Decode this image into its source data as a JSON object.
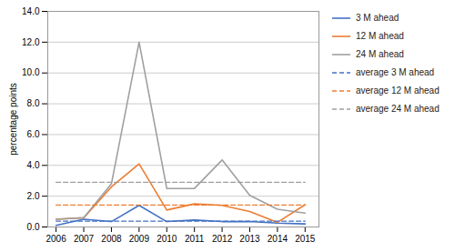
{
  "chart_data": {
    "type": "line",
    "y_label": "percentage points",
    "x": [
      2006,
      2007,
      2008,
      2009,
      2010,
      2011,
      2012,
      2013,
      2014,
      2015
    ],
    "xlim": [
      2005.7,
      2015.5
    ],
    "xticks": [
      2006,
      2007,
      2008,
      2009,
      2010,
      2011,
      2012,
      2013,
      2014,
      2015
    ],
    "ylim": [
      0.0,
      14.0
    ],
    "yticks": [
      {
        "value": 0.0,
        "label": "0.0"
      },
      {
        "value": 2.0,
        "label": "2.0"
      },
      {
        "value": 4.0,
        "label": "4.0"
      },
      {
        "value": 6.0,
        "label": "6.0"
      },
      {
        "value": 8.0,
        "label": "8.0"
      },
      {
        "value": 10.0,
        "label": "10.0"
      },
      {
        "value": 12.0,
        "label": "12.0"
      },
      {
        "value": 14.0,
        "label": "14.0"
      }
    ],
    "grid": true,
    "legend": "right",
    "series": [
      {
        "name": "3 M ahead",
        "color": "#4472C4",
        "line_style": "solid",
        "values": [
          0.1,
          0.5,
          0.35,
          1.4,
          0.35,
          0.45,
          0.35,
          0.35,
          0.25,
          0.2
        ]
      },
      {
        "name": "12 M ahead",
        "color": "#ED7D31",
        "line_style": "solid",
        "values": [
          0.5,
          0.6,
          2.6,
          4.1,
          1.1,
          1.5,
          1.4,
          1.0,
          0.3,
          1.45
        ]
      },
      {
        "name": "24 M ahead",
        "color": "#A0A0A0",
        "line_style": "solid",
        "values": [
          0.5,
          0.6,
          2.8,
          12.0,
          2.5,
          2.5,
          4.35,
          2.05,
          1.15,
          0.9
        ]
      },
      {
        "name": "average 3 M ahead",
        "color": "#4472C4",
        "line_style": "dashed",
        "x": [
          2006,
          2015
        ],
        "values": [
          0.38,
          0.38
        ]
      },
      {
        "name": "average 12 M ahead",
        "color": "#ED7D31",
        "line_style": "dashed",
        "x": [
          2006,
          2015
        ],
        "values": [
          1.42,
          1.42
        ]
      },
      {
        "name": "average 24 M ahead",
        "color": "#A0A0A0",
        "line_style": "dashed",
        "x": [
          2006,
          2015
        ],
        "values": [
          2.9,
          2.9
        ]
      }
    ]
  }
}
